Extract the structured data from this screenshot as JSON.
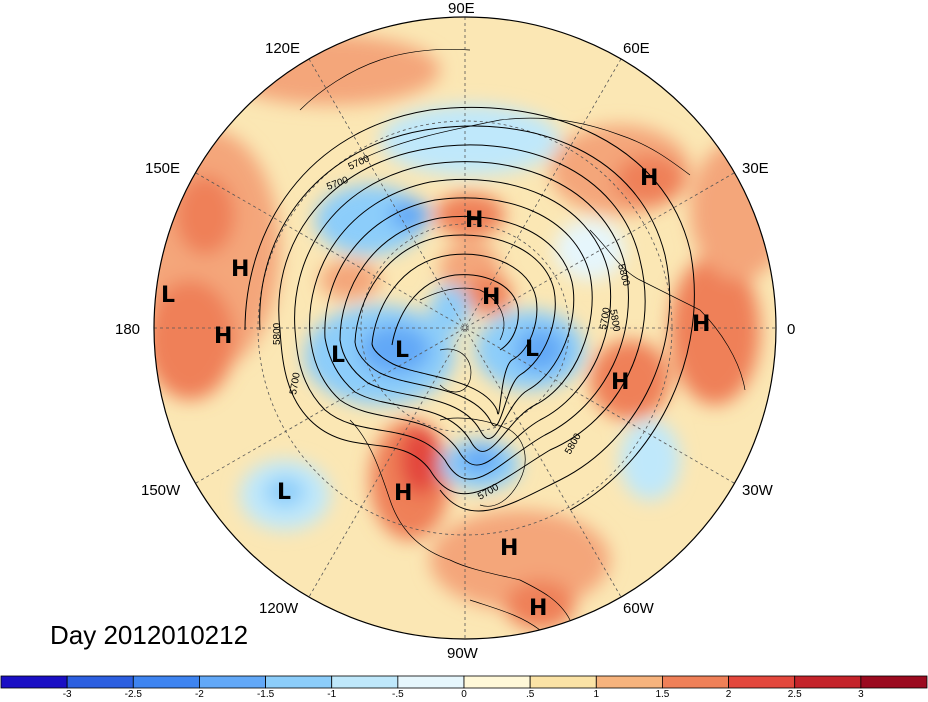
{
  "longitude_labels": [
    "90E",
    "60E",
    "30E",
    "0",
    "30W",
    "60W",
    "90W",
    "120W",
    "150W",
    "180",
    "150E",
    "120E"
  ],
  "title": "Day 2012010212",
  "contour_labels": [
    "5700",
    "5800",
    "5700",
    "5700",
    "5800",
    "5700",
    "5800",
    "5800",
    "5700"
  ],
  "pressure_centers": [
    "H",
    "H",
    "H",
    "H",
    "H",
    "H",
    "H",
    "H",
    "H",
    "H",
    "L",
    "L",
    "L",
    "L",
    "L"
  ],
  "colorbar": {
    "ticks": [
      "-3",
      "-2.5",
      "-2",
      "-1.5",
      "-1",
      "-.5",
      "0",
      ".5",
      "1",
      "1.5",
      "2",
      "2.5",
      "3"
    ],
    "colors": [
      "#1a0fc4",
      "#2c5fe0",
      "#3e84f0",
      "#62a8f7",
      "#8ccdfa",
      "#bfe8fb",
      "#e6f6fc",
      "#fff8d8",
      "#fbe3a6",
      "#f6b37d",
      "#ef8058",
      "#e3473c",
      "#c4232a",
      "#9b0a1f"
    ]
  }
}
